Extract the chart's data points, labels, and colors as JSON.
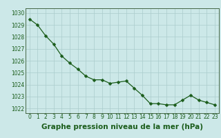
{
  "x": [
    0,
    1,
    2,
    3,
    4,
    5,
    6,
    7,
    8,
    9,
    10,
    11,
    12,
    13,
    14,
    15,
    16,
    17,
    18,
    19,
    20,
    21,
    22,
    23
  ],
  "y": [
    1029.5,
    1029.0,
    1028.1,
    1027.4,
    1026.4,
    1025.8,
    1025.3,
    1024.7,
    1024.4,
    1024.4,
    1024.1,
    1024.2,
    1024.3,
    1023.7,
    1023.1,
    1022.4,
    1022.4,
    1022.3,
    1022.3,
    1022.7,
    1023.1,
    1022.7,
    1022.5,
    1022.3
  ],
  "line_color": "#1a5c1a",
  "marker": "D",
  "marker_size": 2.5,
  "bg_color": "#cce8e8",
  "plot_bg_color": "#cce8e8",
  "grid_color": "#aacccc",
  "xlabel": "Graphe pression niveau de la mer (hPa)",
  "xlabel_color": "#1a5c1a",
  "xlabel_fontsize": 7.5,
  "ylabel_ticks": [
    1022,
    1023,
    1024,
    1025,
    1026,
    1027,
    1028,
    1029,
    1030
  ],
  "ylim": [
    1021.6,
    1030.4
  ],
  "xlim": [
    -0.5,
    23.5
  ],
  "tick_label_color": "#1a5c1a",
  "tick_fontsize": 5.5,
  "bottom_bar_color": "#cce8e8",
  "spine_color": "#446644"
}
